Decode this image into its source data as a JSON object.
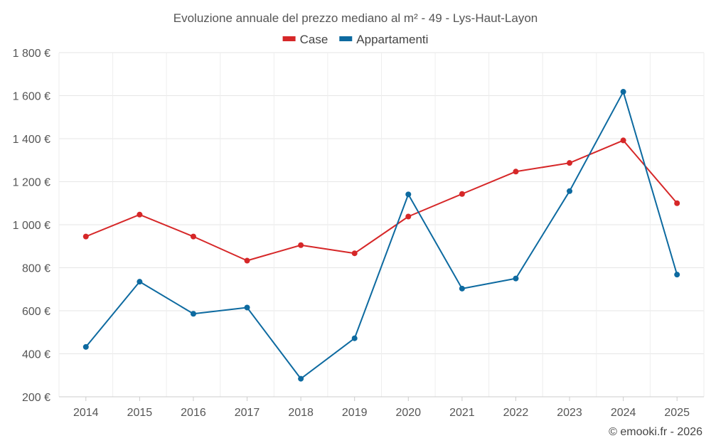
{
  "chart_data": {
    "type": "line",
    "title": "Evoluzione annuale del prezzo mediano al m² - 49 - Lys-Haut-Layon",
    "xlabel": "",
    "ylabel": "",
    "categories": [
      "2014",
      "2015",
      "2016",
      "2017",
      "2018",
      "2019",
      "2020",
      "2021",
      "2022",
      "2023",
      "2024",
      "2025"
    ],
    "series": [
      {
        "name": "Case",
        "color": "#d62728",
        "values": [
          945,
          1047,
          945,
          833,
          905,
          867,
          1038,
          1143,
          1247,
          1287,
          1392,
          1100
        ]
      },
      {
        "name": "Appartamenti",
        "color": "#0d6aa0",
        "values": [
          432,
          735,
          586,
          615,
          284,
          472,
          1141,
          703,
          750,
          1156,
          1618,
          768
        ]
      }
    ],
    "ylim": [
      200,
      1800
    ],
    "yticks": [
      200,
      400,
      600,
      800,
      1000,
      1200,
      1400,
      1600,
      1800
    ],
    "ytick_labels": [
      "200 €",
      "400 €",
      "600 €",
      "800 €",
      "1 000 €",
      "1 200 €",
      "1 400 €",
      "1 600 €",
      "1 800 €"
    ],
    "grid": true,
    "legend_position": "top-center"
  },
  "footer": {
    "credit": "© emooki.fr - 2026"
  }
}
